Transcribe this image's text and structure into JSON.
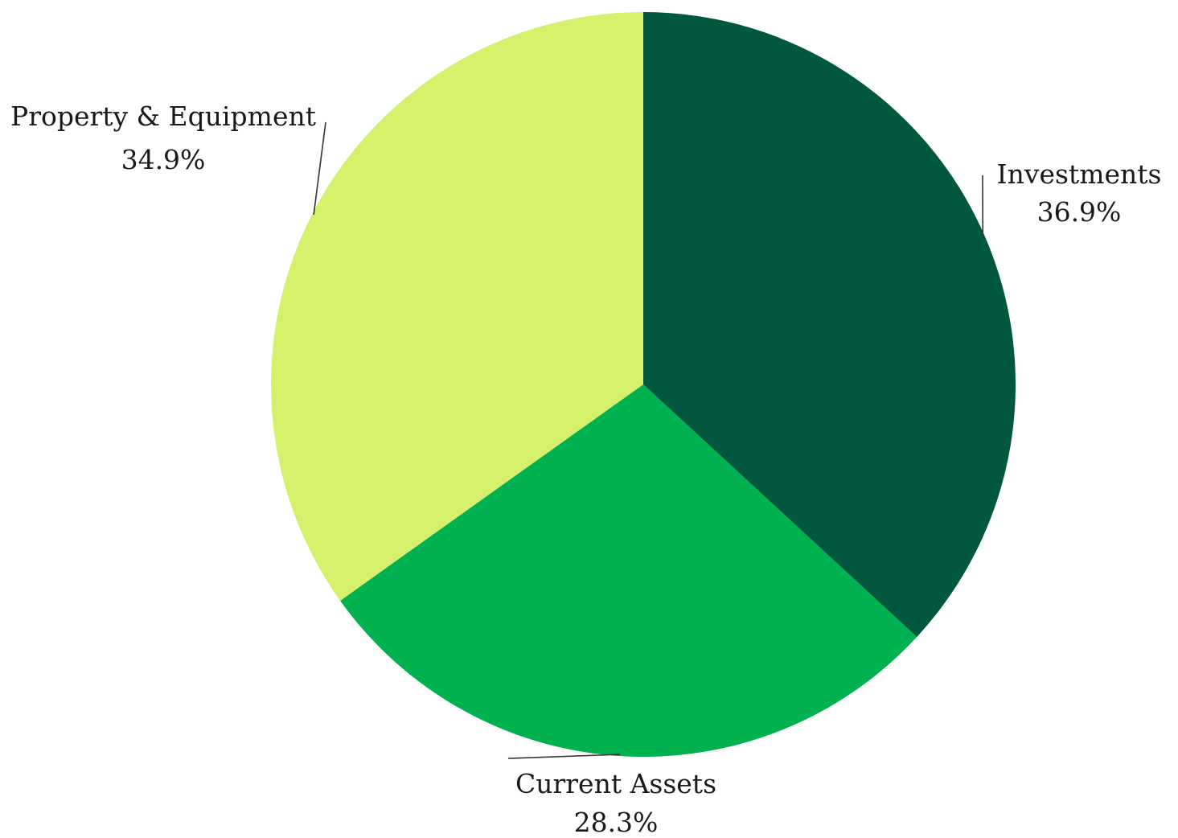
{
  "chart_data": {
    "type": "pie",
    "title": "",
    "slices": [
      {
        "label": "Investments",
        "value": 36.9,
        "display": "36.9%",
        "color": "#02573F"
      },
      {
        "label": "Current Assets",
        "value": 28.3,
        "display": "28.3%",
        "color": "#00B14F"
      },
      {
        "label": "Property & Equipment",
        "value": 34.9,
        "display": "34.9%",
        "color": "#D5F06A"
      }
    ],
    "start_angle": "12 o'clock",
    "direction": "clockwise",
    "legend": "none"
  }
}
